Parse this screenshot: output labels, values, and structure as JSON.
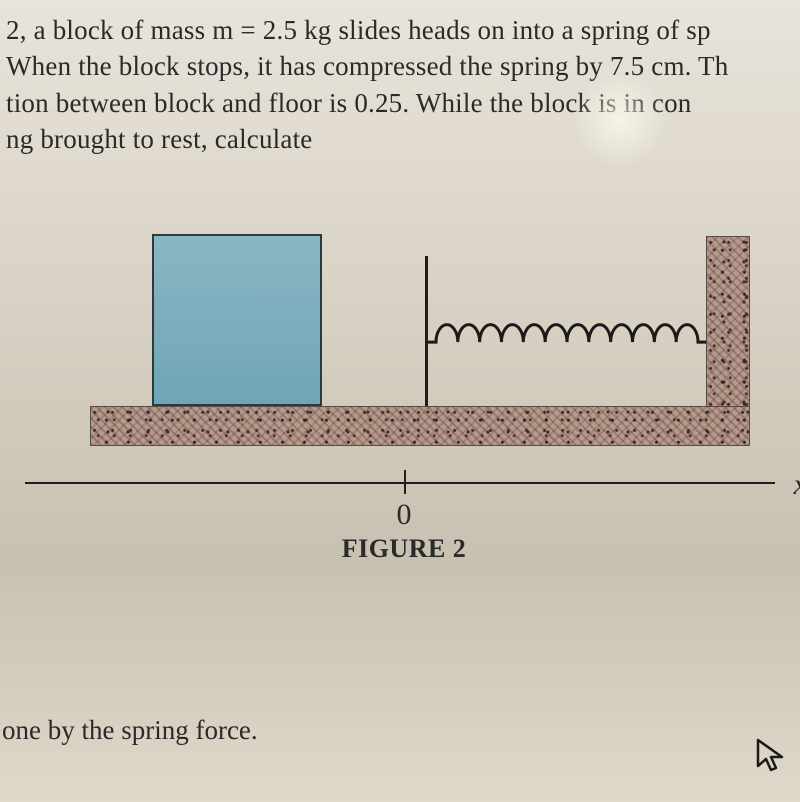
{
  "problem": {
    "line1_prefix": "2, a block of mass m = ",
    "mass": "2.5",
    "line1_suffix": " kg slides heads on into a spring of sp",
    "line2_prefix": "When the block stops, it has compressed the spring by ",
    "compression": "7.5",
    "line2_suffix": " cm. Th",
    "line3_prefix": "tion between block and floor is ",
    "mu": "0.25",
    "line3_suffix": ". While the block is in con",
    "line4": "ng brought to rest, calculate"
  },
  "figure": {
    "block": {
      "color": "#7fadc0",
      "border": "#2a3a40"
    },
    "hatch": {
      "fill": "#b89a8c",
      "stroke": "#5a4a44"
    },
    "spring": {
      "coils": 12,
      "stroke": "#1a1a1a",
      "stroke_width": 3
    },
    "axis": {
      "tick_x_ratio": 0.505,
      "zero_label": "0",
      "caption": "FIGURE 2",
      "x_symbol": "x"
    }
  },
  "footer": "one by the spring force."
}
